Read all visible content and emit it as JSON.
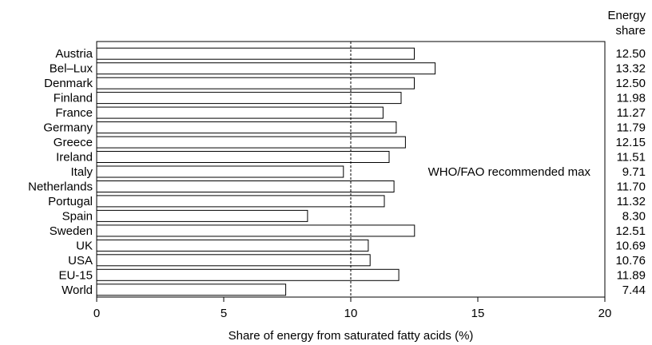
{
  "chart_data": {
    "type": "bar",
    "orientation": "horizontal",
    "value_column_header": [
      "Energy",
      "share"
    ],
    "categories": [
      "Austria",
      "Bel–Lux",
      "Denmark",
      "Finland",
      "France",
      "Germany",
      "Greece",
      "Ireland",
      "Italy",
      "Netherlands",
      "Portugal",
      "Spain",
      "Sweden",
      "UK",
      "USA",
      "EU-15",
      "World"
    ],
    "values": [
      12.5,
      13.32,
      12.5,
      11.98,
      11.27,
      11.79,
      12.15,
      11.51,
      9.71,
      11.7,
      11.32,
      8.3,
      12.51,
      10.69,
      10.76,
      11.89,
      7.44
    ],
    "value_labels": [
      "12.50",
      "13.32",
      "12.50",
      "11.98",
      "11.27",
      "11.79",
      "12.15",
      "11.51",
      "9.71",
      "11.70",
      "11.32",
      "8.30",
      "12.51",
      "10.69",
      "10.76",
      "11.89",
      "7.44"
    ],
    "xlabel": "Share of energy from saturated fatty acids (%)",
    "xlim": [
      0,
      20
    ],
    "xticks": [
      0,
      5,
      10,
      15,
      20
    ],
    "xtick_labels": [
      "0",
      "5",
      "10",
      "15",
      "20"
    ],
    "reference_line": {
      "value": 10,
      "label": "WHO/FAO recommended max",
      "style": "dashed"
    },
    "grid": false,
    "colors": {
      "bar_fill": "#ffffff",
      "bar_stroke": "#000000",
      "axis": "#000000"
    }
  }
}
